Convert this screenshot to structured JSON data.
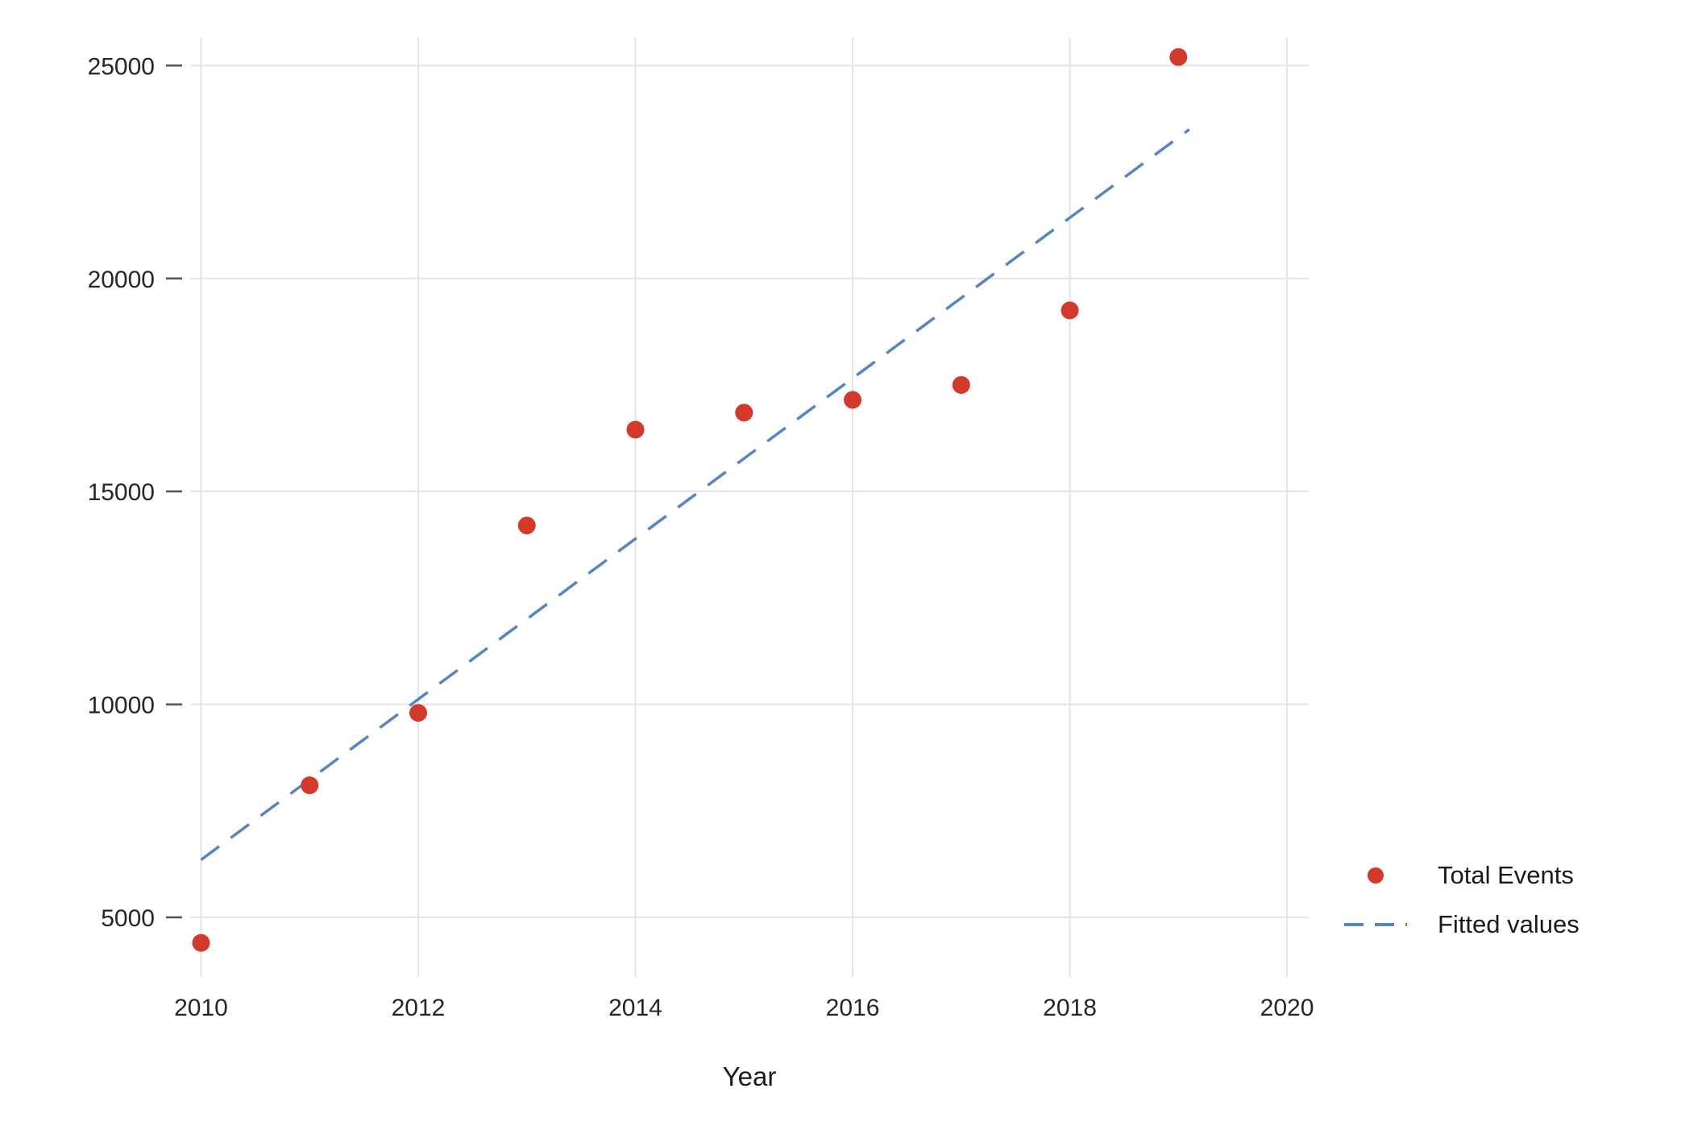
{
  "chart_data": {
    "type": "scatter",
    "title": "",
    "xlabel": "Year",
    "ylabel": "",
    "xlim": [
      2009.9,
      2020.2
    ],
    "ylim": [
      3600,
      25650
    ],
    "x_ticks": [
      2010,
      2012,
      2014,
      2016,
      2018,
      2020
    ],
    "y_ticks": [
      5000,
      10000,
      15000,
      20000,
      25000
    ],
    "grid": true,
    "legend_position": "right-bottom",
    "series": [
      {
        "name": "Total Events",
        "type": "scatter",
        "color": "#d33a2c",
        "x": [
          2010,
          2011,
          2012,
          2013,
          2014,
          2015,
          2016,
          2017,
          2018,
          2019
        ],
        "y": [
          4400,
          8100,
          9800,
          14200,
          16450,
          16850,
          17150,
          17500,
          19250,
          25200
        ]
      },
      {
        "name": "Fitted values",
        "type": "line",
        "dashed": true,
        "color": "#5586c0",
        "x": [
          2010,
          2019.1
        ],
        "y": [
          6350,
          23500
        ]
      }
    ],
    "colors": {
      "background": "#ffffff",
      "grid": "#e4e4e4",
      "tick": "#555555",
      "text": "#262626",
      "points": "#d33a2c",
      "fit_line": "#5586c0"
    }
  }
}
